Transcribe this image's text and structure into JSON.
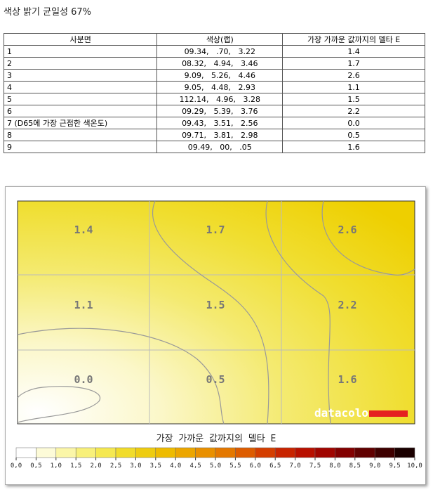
{
  "title": "색상 밝기 균일성 67%",
  "table": {
    "headers": [
      "사분면",
      "색상(랩)",
      "가장 가까운 값까지의 델타 E"
    ],
    "rows": [
      [
        "1",
        "09.34,   .70,   3.22",
        "1.4"
      ],
      [
        "2",
        "08.32,   4.94,   3.46",
        "1.7"
      ],
      [
        "3",
        "9.09,   5.26,   4.46",
        "2.6"
      ],
      [
        "4",
        "9.05,   4.48,   2.93",
        "1.1"
      ],
      [
        "5",
        "112.14,   4.96,   3.28",
        "1.5"
      ],
      [
        "6",
        "09.29,   5.39,   3.76",
        "2.2"
      ],
      [
        "7 (D65에 가장 근접한 색온도)",
        "09.43,   3.51,   2.56",
        "0.0"
      ],
      [
        "8",
        "09.71,   3.81,   2.98",
        "0.5"
      ],
      [
        "9",
        "09.49,   00,   .05",
        "1.6"
      ]
    ]
  },
  "heatmap": {
    "cells": [
      [
        "1.4",
        "1.7",
        "2.6"
      ],
      [
        "1.1",
        "1.5",
        "2.2"
      ],
      [
        "0.0",
        "0.5",
        "1.6"
      ]
    ],
    "brand": "datacolor",
    "caption": "가장 가까운 값까지의 델타 E",
    "scale_labels": [
      "0,0",
      "0,5",
      "1,0",
      "1,5",
      "2,0",
      "2,5",
      "3,0",
      "3,5",
      "4,0",
      "4,5",
      "5,0",
      "5,5",
      "6,0",
      "6,5",
      "7,0",
      "7,5",
      "8,0",
      "8,5",
      "9,0",
      "9,5",
      "10,0"
    ]
  }
}
